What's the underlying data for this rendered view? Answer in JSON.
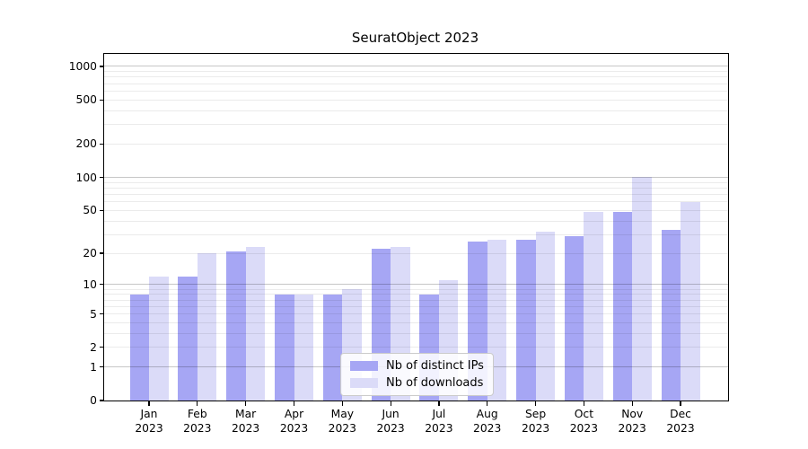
{
  "title": "SeuratObject 2023",
  "chart_data": {
    "type": "bar",
    "title": "SeuratObject 2023",
    "categories": [
      "Jan 2023",
      "Feb 2023",
      "Mar 2023",
      "Apr 2023",
      "May 2023",
      "Jun 2023",
      "Jul 2023",
      "Aug 2023",
      "Sep 2023",
      "Oct 2023",
      "Nov 2023",
      "Dec 2023"
    ],
    "x": {
      "months": [
        "Jan",
        "Feb",
        "Mar",
        "Apr",
        "May",
        "Jun",
        "Jul",
        "Aug",
        "Sep",
        "Oct",
        "Nov",
        "Dec"
      ],
      "year": "2023"
    },
    "series": [
      {
        "name": "Nb of distinct IPs",
        "color": "#a6a6f4",
        "values": [
          8,
          12,
          21,
          8,
          8,
          22,
          8,
          26,
          27,
          29,
          48,
          33
        ]
      },
      {
        "name": "Nb of downloads",
        "color": "#dbdbf8",
        "values": [
          12,
          20,
          23,
          8,
          9,
          23,
          11,
          27,
          32,
          48,
          101,
          60
        ]
      }
    ],
    "y_axis": {
      "scale": "log1p",
      "tick_labels": [
        1000,
        500,
        200,
        100,
        50,
        20,
        10,
        5,
        2,
        1,
        0
      ],
      "major_gridlines": [
        1,
        10,
        100,
        1000
      ],
      "minor_gridlines": [
        2,
        3,
        4,
        5,
        6,
        7,
        8,
        9,
        20,
        30,
        40,
        50,
        60,
        70,
        80,
        90,
        200,
        300,
        400,
        500,
        600,
        700,
        800,
        900
      ],
      "ylim": [
        0,
        1100
      ]
    },
    "legend": {
      "position": "lower center",
      "items": [
        "Nb of distinct IPs",
        "Nb of downloads"
      ]
    },
    "grid": true
  },
  "colors": {
    "bar_distinct_ips": "#a6a6f4",
    "bar_downloads": "#dbdbf8",
    "axis": "#000000",
    "grid_major": "#c6c6c6",
    "grid_minor": "#ebebeb",
    "legend_border": "#cbcbcb",
    "background": "#ffffff"
  }
}
